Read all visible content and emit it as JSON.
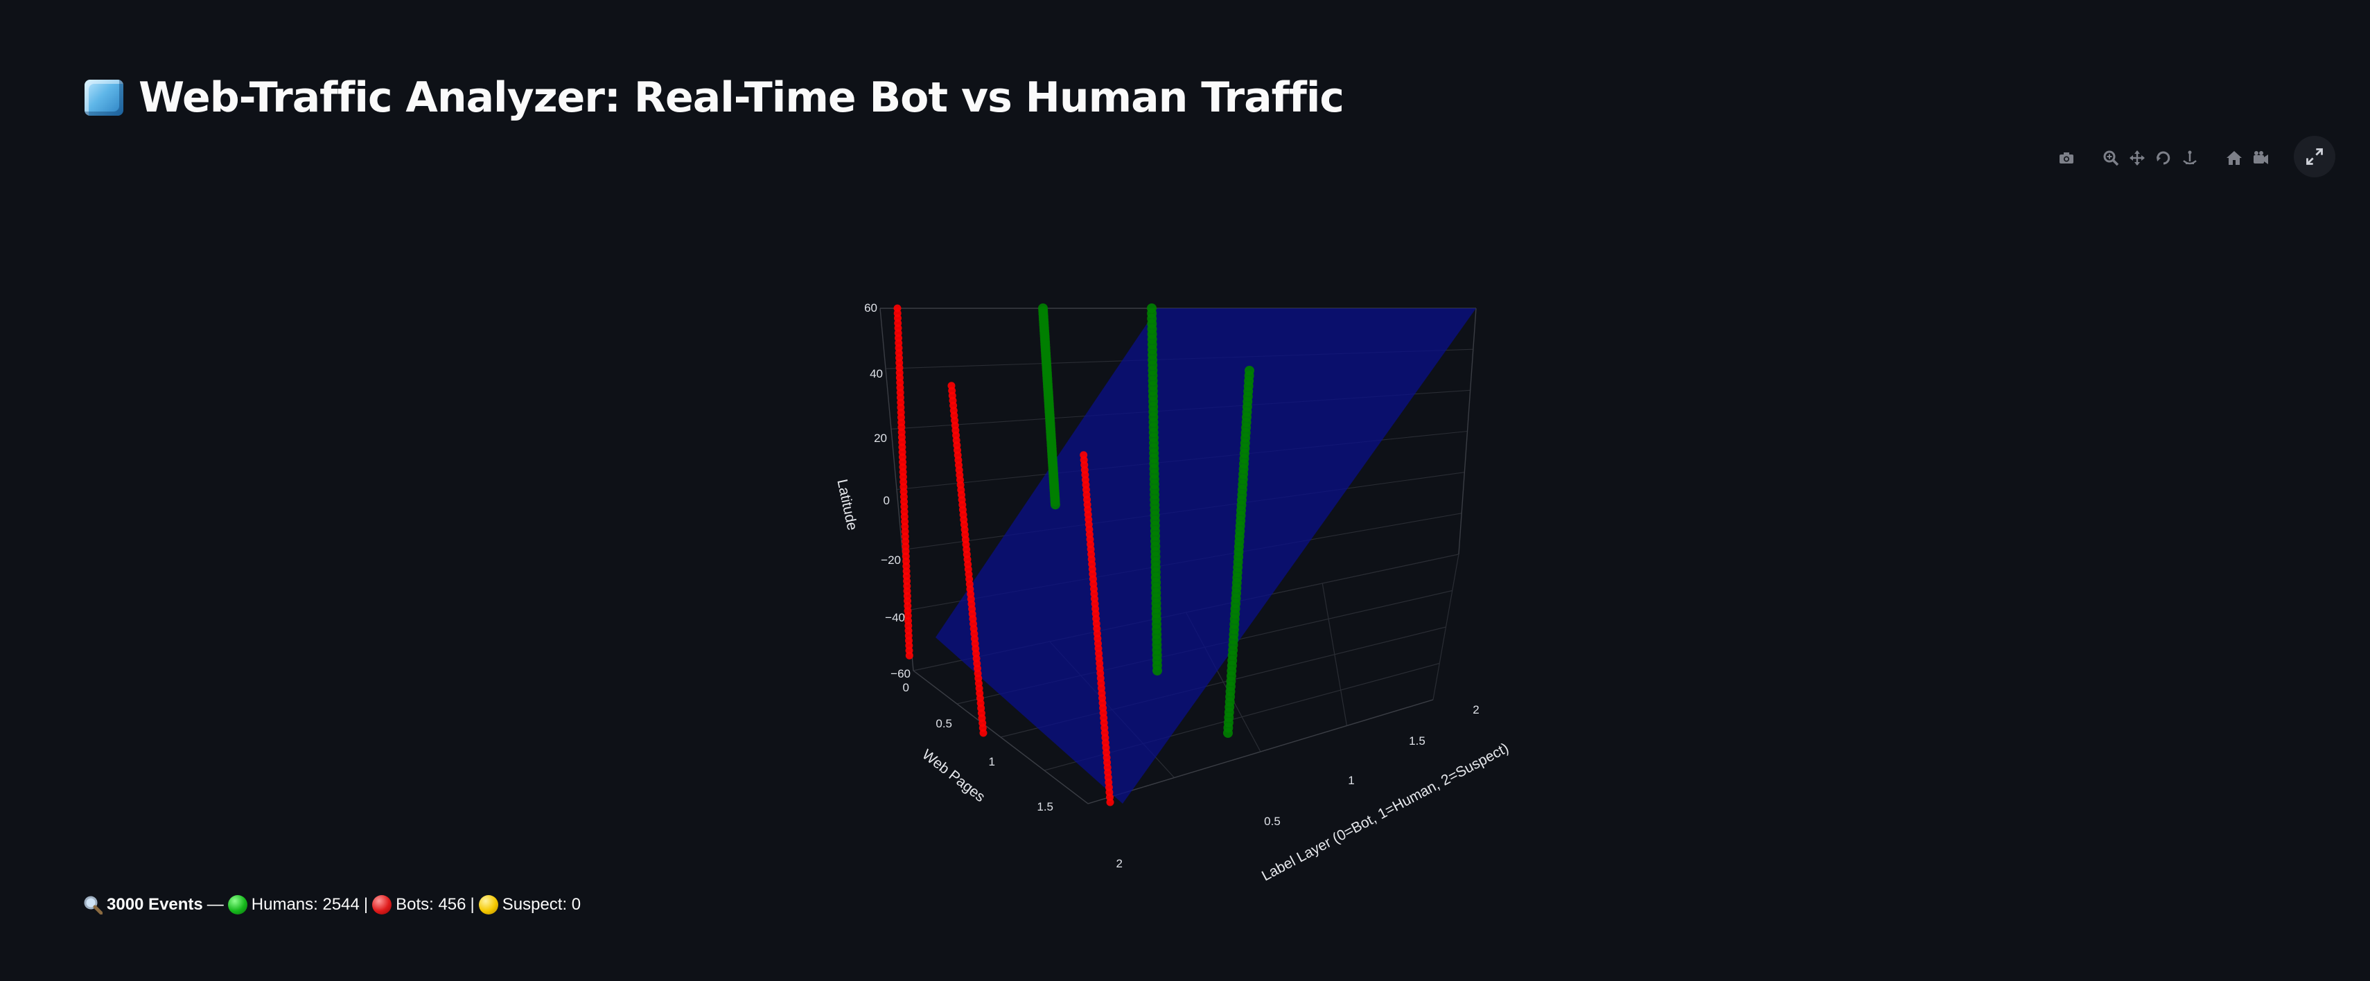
{
  "header": {
    "title": "Web-Traffic Analyzer: Real-Time Bot vs Human Traffic",
    "icon": "ice-cube-icon"
  },
  "modebar": {
    "buttons": [
      "camera-icon",
      "zoom-icon",
      "pan-icon",
      "orbit-rotation-icon",
      "turntable-rotation-icon",
      "home-icon",
      "camera-reset-icon",
      "toggle-hover-icon"
    ],
    "fullscreen": "fullscreen-icon"
  },
  "chart_data": {
    "type": "scatter",
    "scene": "3d",
    "axes": {
      "x": {
        "title": "Label Layer (0=Bot, 1=Human, 2=Suspect)",
        "ticks": [
          "0.5",
          "1",
          "1.5",
          "2"
        ],
        "range": [
          0,
          2
        ]
      },
      "y": {
        "title": "Web Pages",
        "ticks": [
          "0",
          "0.5",
          "1",
          "1.5",
          "2"
        ],
        "range": [
          0,
          2
        ]
      },
      "z": {
        "title": "Latitude",
        "ticks": [
          "60",
          "40",
          "20",
          "0",
          "−20",
          "−40",
          "−60"
        ],
        "range": [
          -60,
          60
        ]
      }
    },
    "series": [
      {
        "color": "#ff0000",
        "label_layer": 0,
        "web_page": 0,
        "latitude_range": [
          -55,
          60
        ]
      },
      {
        "color": "#ff0000",
        "label_layer": 0,
        "web_page": 1,
        "latitude_range": [
          -60,
          55
        ]
      },
      {
        "color": "#ff0000",
        "label_layer": 0,
        "web_page": 2,
        "latitude_range": [
          -60,
          55
        ]
      },
      {
        "color": "#008000",
        "label_layer": 1,
        "web_page": 0,
        "latitude_range": [
          -5,
          60
        ]
      },
      {
        "color": "#008000",
        "label_layer": 1,
        "web_page": 1,
        "latitude_range": [
          -60,
          60
        ]
      },
      {
        "color": "#008000",
        "label_layer": 1,
        "web_page": 2,
        "latitude_range": [
          -60,
          60
        ]
      }
    ],
    "surface": {
      "color": "#0a0f8a",
      "opacity": 0.75
    },
    "grid": true
  },
  "status": {
    "events": "3000 Events",
    "sep1": "—",
    "humans": "Humans: 2544",
    "bar1": "|",
    "bots": "Bots: 456",
    "bar2": "|",
    "suspect": "Suspect: 0"
  }
}
